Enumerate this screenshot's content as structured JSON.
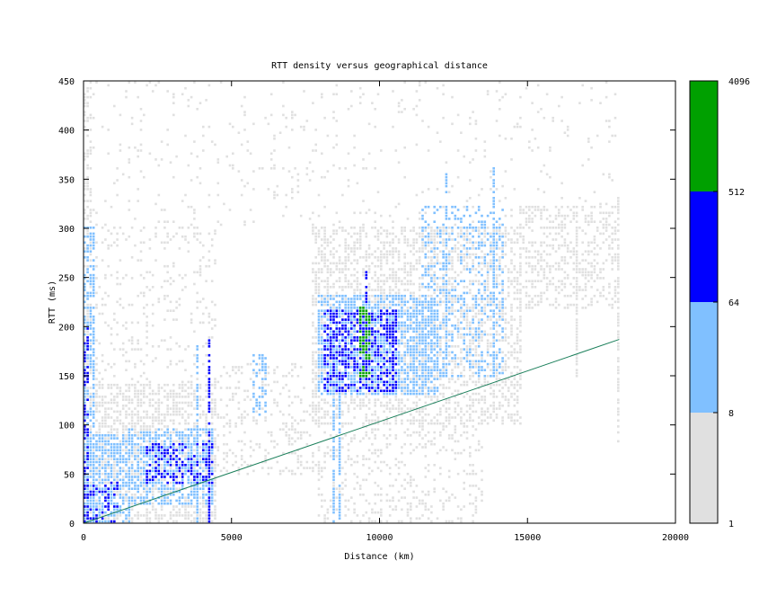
{
  "chart_data": {
    "type": "heatmap",
    "title": "RTT density versus geographical distance",
    "xlabel": "Distance (km)",
    "ylabel": "RTT (ms)",
    "xlim": [
      0,
      20000
    ],
    "ylim": [
      0,
      450
    ],
    "x_ticks": [
      0,
      5000,
      10000,
      15000,
      20000
    ],
    "y_ticks": [
      0,
      50,
      100,
      150,
      200,
      250,
      300,
      350,
      400,
      450
    ],
    "grid": false,
    "colorbar": {
      "scale": "log",
      "range": [
        1,
        4096
      ],
      "tick_labels": [
        "1",
        "8",
        "64",
        "512",
        "4096"
      ],
      "bins": [
        {
          "from": 1,
          "to": 8,
          "color": "#e0e0e0"
        },
        {
          "from": 8,
          "to": 64,
          "color": "#80c0ff"
        },
        {
          "from": 64,
          "to": 512,
          "color": "#0000ff"
        },
        {
          "from": 512,
          "to": 4096,
          "color": "#00a000"
        }
      ]
    },
    "reference_line": {
      "color": "#1a7f5a",
      "points": [
        [
          0,
          0
        ],
        [
          18100,
          187
        ]
      ]
    },
    "regions": [
      {
        "x": [
          0,
          300
        ],
        "y": [
          0,
          450
        ],
        "level": 1,
        "density": 0.45
      },
      {
        "x": [
          0,
          250
        ],
        "y": [
          0,
          300
        ],
        "level": 2,
        "density": 0.5
      },
      {
        "x": [
          0,
          150
        ],
        "y": [
          0,
          200
        ],
        "level": 3,
        "density": 0.35
      },
      {
        "x": [
          300,
          4500
        ],
        "y": [
          0,
          140
        ],
        "level": 1,
        "density": 0.55
      },
      {
        "x": [
          0,
          1600
        ],
        "y": [
          0,
          90
        ],
        "level": 2,
        "density": 0.55
      },
      {
        "x": [
          0,
          1200
        ],
        "y": [
          0,
          40
        ],
        "level": 3,
        "density": 0.25
      },
      {
        "x": [
          1600,
          4400
        ],
        "y": [
          20,
          95
        ],
        "level": 2,
        "density": 0.55
      },
      {
        "x": [
          2200,
          4400
        ],
        "y": [
          40,
          80
        ],
        "level": 3,
        "density": 0.35
      },
      {
        "x": [
          500,
          4500
        ],
        "y": [
          140,
          300
        ],
        "level": 1,
        "density": 0.12
      },
      {
        "x": [
          4500,
          8000
        ],
        "y": [
          50,
          160
        ],
        "level": 1,
        "density": 0.22
      },
      {
        "x": [
          5800,
          6200
        ],
        "y": [
          110,
          170
        ],
        "level": 2,
        "density": 0.45
      },
      {
        "x": [
          7800,
          14800
        ],
        "y": [
          100,
          300
        ],
        "level": 1,
        "density": 0.45
      },
      {
        "x": [
          8000,
          13500
        ],
        "y": [
          0,
          100
        ],
        "level": 1,
        "density": 0.2
      },
      {
        "x": [
          8000,
          12000
        ],
        "y": [
          130,
          230
        ],
        "level": 2,
        "density": 0.6
      },
      {
        "x": [
          8200,
          10600
        ],
        "y": [
          135,
          215
        ],
        "level": 3,
        "density": 0.45
      },
      {
        "x": [
          9400,
          9650
        ],
        "y": [
          150,
          220
        ],
        "level": 4,
        "density": 0.5
      },
      {
        "x": [
          11500,
          14200
        ],
        "y": [
          150,
          320
        ],
        "level": 2,
        "density": 0.28
      },
      {
        "x": [
          14800,
          18000
        ],
        "y": [
          220,
          320
        ],
        "level": 1,
        "density": 0.35
      },
      {
        "x": [
          200,
          18000
        ],
        "y": [
          300,
          450
        ],
        "level": 1,
        "density": 0.05
      }
    ],
    "columns": [
      {
        "x": 4300,
        "y": [
          0,
          190
        ],
        "level": 3
      },
      {
        "x": 3900,
        "y": [
          0,
          180
        ],
        "level": 2
      },
      {
        "x": 400,
        "y": [
          20,
          300
        ],
        "level": 2
      },
      {
        "x": 12300,
        "y": [
          150,
          360
        ],
        "level": 2
      },
      {
        "x": 13900,
        "y": [
          150,
          360
        ],
        "level": 2
      },
      {
        "x": 9550,
        "y": [
          150,
          255
        ],
        "level": 3
      },
      {
        "x": 8500,
        "y": [
          0,
          140
        ],
        "level": 2
      },
      {
        "x": 8700,
        "y": [
          0,
          140
        ],
        "level": 2
      },
      {
        "x": 18100,
        "y": [
          80,
          330
        ],
        "level": 1
      },
      {
        "x": 16700,
        "y": [
          150,
          300
        ],
        "level": 1
      }
    ]
  }
}
